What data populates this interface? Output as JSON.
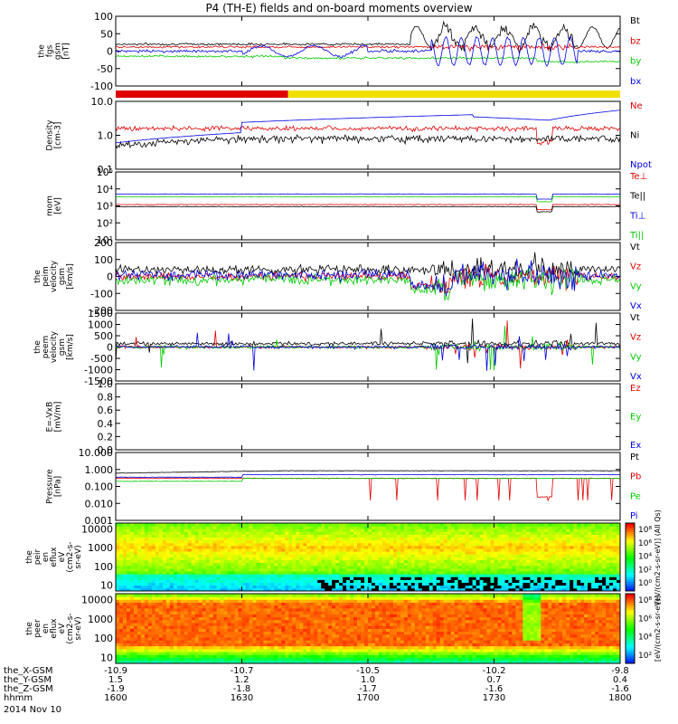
{
  "title": "P4 (TH-E) fields and on-board moments overview",
  "date_label": "2014 Nov 10",
  "colors": {
    "black": "#000000",
    "red": "#e00000",
    "green": "#00cc00",
    "blue": "#0000e0",
    "yellow": "#f0e000"
  },
  "chart_data": [
    {
      "type": "line",
      "id": "fgs",
      "ylabel": [
        "the",
        "fgs",
        "gsm",
        "[nT]"
      ],
      "scale": "linear",
      "ylim": [
        -100,
        100
      ],
      "ticks": [
        {
          "v": 100,
          "label": "100"
        },
        {
          "v": 50,
          "label": "50"
        },
        {
          "v": 0,
          "label": "0"
        },
        {
          "v": -50,
          "label": "-50"
        },
        {
          "v": -100,
          "label": "-100"
        }
      ],
      "series": [
        {
          "name": "Bt",
          "color": "black",
          "base": 20,
          "noise": 3,
          "pattern": "bt"
        },
        {
          "name": "bz",
          "color": "red",
          "base": 12,
          "noise": 3,
          "pattern": "bz"
        },
        {
          "name": "by",
          "color": "green",
          "base": -15,
          "noise": 3,
          "pattern": "by"
        },
        {
          "name": "bx",
          "color": "blue",
          "base": 0,
          "noise": 4,
          "pattern": "bx"
        }
      ]
    },
    {
      "type": "line",
      "id": "density",
      "ylabel": [
        "Density",
        "[cm-3]"
      ],
      "scale": "log",
      "ylim": [
        0.1,
        10
      ],
      "ticks": [
        {
          "v": 10,
          "label": "10.0"
        },
        {
          "v": 1,
          "label": "1.0"
        },
        {
          "v": 0.1,
          "label": "0.1"
        }
      ],
      "series": [
        {
          "name": "Ne",
          "color": "red",
          "base": 1.6,
          "noise": 0.08,
          "pattern": "ne"
        },
        {
          "name": "Ni",
          "color": "black",
          "base": 0.8,
          "noise": 0.08,
          "pattern": "ni"
        },
        {
          "name": "Npot",
          "color": "blue",
          "base": 1.2,
          "noise": 0.02,
          "pattern": "npot"
        }
      ]
    },
    {
      "type": "line",
      "id": "temp",
      "ylabel": [
        "mom",
        "[eV]"
      ],
      "scale": "log",
      "ylim": [
        10,
        100000
      ],
      "ticks": [
        {
          "v": 100000,
          "label": "10⁵"
        },
        {
          "v": 10000,
          "label": "10⁴"
        },
        {
          "v": 1000,
          "label": "10³"
        },
        {
          "v": 100,
          "label": "10²"
        },
        {
          "v": 10,
          "label": "10¹"
        }
      ],
      "series": [
        {
          "name": "Te⊥",
          "color": "red",
          "base": 1200,
          "noise": 0.04,
          "pattern": "t"
        },
        {
          "name": "Te||",
          "color": "black",
          "base": 900,
          "noise": 0.04,
          "pattern": "t"
        },
        {
          "name": "Ti⊥",
          "color": "blue",
          "base": 5000,
          "noise": 0.03,
          "pattern": "t"
        },
        {
          "name": "Ti||",
          "color": "green",
          "base": 3500,
          "noise": 0.03,
          "pattern": "t"
        }
      ]
    },
    {
      "type": "line",
      "id": "peim",
      "ylabel": [
        "the",
        "peim",
        "velocity",
        "gsm",
        "[km/s]"
      ],
      "scale": "linear",
      "ylim": [
        -200,
        200
      ],
      "ticks": [
        {
          "v": 200,
          "label": "200"
        },
        {
          "v": 100,
          "label": "100"
        },
        {
          "v": 0,
          "label": "0"
        },
        {
          "v": -100,
          "label": "-100"
        },
        {
          "v": -200,
          "label": "-200"
        }
      ],
      "series": [
        {
          "name": "Vt",
          "color": "black",
          "base": 40,
          "noise": 25,
          "pattern": "vt"
        },
        {
          "name": "Vz",
          "color": "red",
          "base": 0,
          "noise": 25,
          "pattern": "v"
        },
        {
          "name": "Vy",
          "color": "green",
          "base": -20,
          "noise": 30,
          "pattern": "v"
        },
        {
          "name": "Vx",
          "color": "blue",
          "base": 10,
          "noise": 30,
          "pattern": "v"
        }
      ]
    },
    {
      "type": "line",
      "id": "peem",
      "ylabel": [
        "the",
        "peem",
        "velocity",
        "gsm",
        "[km/s]"
      ],
      "scale": "linear",
      "ylim": [
        -1500,
        1500
      ],
      "ticks": [
        {
          "v": 1500,
          "label": "1500"
        },
        {
          "v": 1000,
          "label": "1000"
        },
        {
          "v": 500,
          "label": "500"
        },
        {
          "v": 0,
          "label": "0"
        },
        {
          "v": -500,
          "label": "-500"
        },
        {
          "v": -1000,
          "label": "-1000"
        },
        {
          "v": -1500,
          "label": "-1500"
        }
      ],
      "series": [
        {
          "name": "Vt",
          "color": "black",
          "base": 150,
          "noise": 80,
          "pattern": "spike"
        },
        {
          "name": "Vz",
          "color": "red",
          "base": 0,
          "noise": 60,
          "pattern": "spike"
        },
        {
          "name": "Vy",
          "color": "green",
          "base": 0,
          "noise": 70,
          "pattern": "spike"
        },
        {
          "name": "Vx",
          "color": "blue",
          "base": 0,
          "noise": 60,
          "pattern": "spike"
        }
      ]
    },
    {
      "type": "line",
      "id": "efield",
      "ylabel": [
        "E=-VxB",
        "[mV/m]"
      ],
      "scale": "linear",
      "ylim": [
        0,
        1
      ],
      "ticks": [
        {
          "v": 1,
          "label": "1.0"
        },
        {
          "v": 0.8,
          "label": "0.8"
        },
        {
          "v": 0.6,
          "label": "0.6"
        },
        {
          "v": 0.4,
          "label": "0.4"
        },
        {
          "v": 0.2,
          "label": "0.2"
        },
        {
          "v": 0,
          "label": "0.0"
        }
      ],
      "series": [
        {
          "name": "Ez",
          "color": "red",
          "empty": true
        },
        {
          "name": "Ey",
          "color": "green",
          "empty": true
        },
        {
          "name": "Ex",
          "color": "blue",
          "empty": true
        }
      ]
    },
    {
      "type": "line",
      "id": "pressure",
      "ylabel": [
        "Pressure",
        "[nPa]"
      ],
      "scale": "log",
      "ylim": [
        0.001,
        10
      ],
      "ticks": [
        {
          "v": 10,
          "label": "10.000"
        },
        {
          "v": 1,
          "label": "1.000"
        },
        {
          "v": 0.1,
          "label": "0.100"
        },
        {
          "v": 0.01,
          "label": "0.010"
        },
        {
          "v": 0.001,
          "label": "0.001"
        }
      ],
      "series": [
        {
          "name": "Pt",
          "color": "black",
          "base": 0.6,
          "noise": 0.03,
          "pattern": "pt"
        },
        {
          "name": "Pb",
          "color": "red",
          "base": 0.3,
          "noise": 0.05,
          "pattern": "pb"
        },
        {
          "name": "Pe",
          "color": "green",
          "base": 0.2,
          "noise": 0.03,
          "pattern": "pe"
        },
        {
          "name": "Pi",
          "color": "blue",
          "base": 0.35,
          "noise": 0.03,
          "pattern": "pi"
        }
      ]
    },
    {
      "type": "heatmap",
      "id": "peir",
      "ylabel": [
        "the",
        "peir",
        "en",
        "eflux",
        "eV",
        "(cm2-s-",
        "sr-eV)"
      ],
      "scale": "log",
      "ylim": [
        5,
        20000
      ],
      "ticks": [
        {
          "v": 10000,
          "label": "10000"
        },
        {
          "v": 1000,
          "label": "1000"
        },
        {
          "v": 100,
          "label": "100"
        },
        {
          "v": 10,
          "label": "10"
        }
      ],
      "colorbar": {
        "label": "[eV/(cm2-s-sr-eV)] (All Qs)",
        "ticks": [
          "10⁸",
          "10⁶",
          "10⁴",
          "10²",
          "10⁰"
        ]
      }
    },
    {
      "type": "heatmap",
      "id": "peer",
      "ylabel": [
        "the",
        "peer",
        "en",
        "eflux",
        "eV",
        "(cm2-s-",
        "sr-eV)"
      ],
      "scale": "log",
      "ylim": [
        5,
        20000
      ],
      "ticks": [
        {
          "v": 10000,
          "label": "10000"
        },
        {
          "v": 1000,
          "label": "1000"
        },
        {
          "v": 100,
          "label": "100"
        },
        {
          "v": 10,
          "label": "10"
        }
      ],
      "colorbar": {
        "label": "[eV/(cm2-s-sr-eV)]",
        "ticks": [
          "10⁸",
          "10⁶",
          "10⁴",
          "10²"
        ]
      }
    }
  ],
  "x_axis": {
    "row_labels": [
      "the_X-GSM",
      "the_Y-GSM",
      "the_Z-GSM",
      "hhmm"
    ],
    "columns": [
      {
        "x": 1600,
        "values": [
          "-10.9",
          "1.5",
          "-1.9",
          "1600"
        ]
      },
      {
        "x": 1630,
        "values": [
          "-10.7",
          "1.2",
          "-1.8",
          "1630"
        ]
      },
      {
        "x": 1700,
        "values": [
          "-10.5",
          "1.0",
          "-1.7",
          "1700"
        ]
      },
      {
        "x": 1730,
        "values": [
          "-10.2",
          "0.7",
          "-1.6",
          "1730"
        ]
      },
      {
        "x": 1800,
        "values": [
          "-9.8",
          "0.4",
          "-1.6",
          "1800"
        ]
      }
    ]
  },
  "mode_bar": {
    "segments": [
      {
        "color": "red",
        "x_start": 1600,
        "x_end": 1641
      },
      {
        "color": "yellow",
        "x_start": 1641,
        "x_end": 1800
      }
    ]
  }
}
